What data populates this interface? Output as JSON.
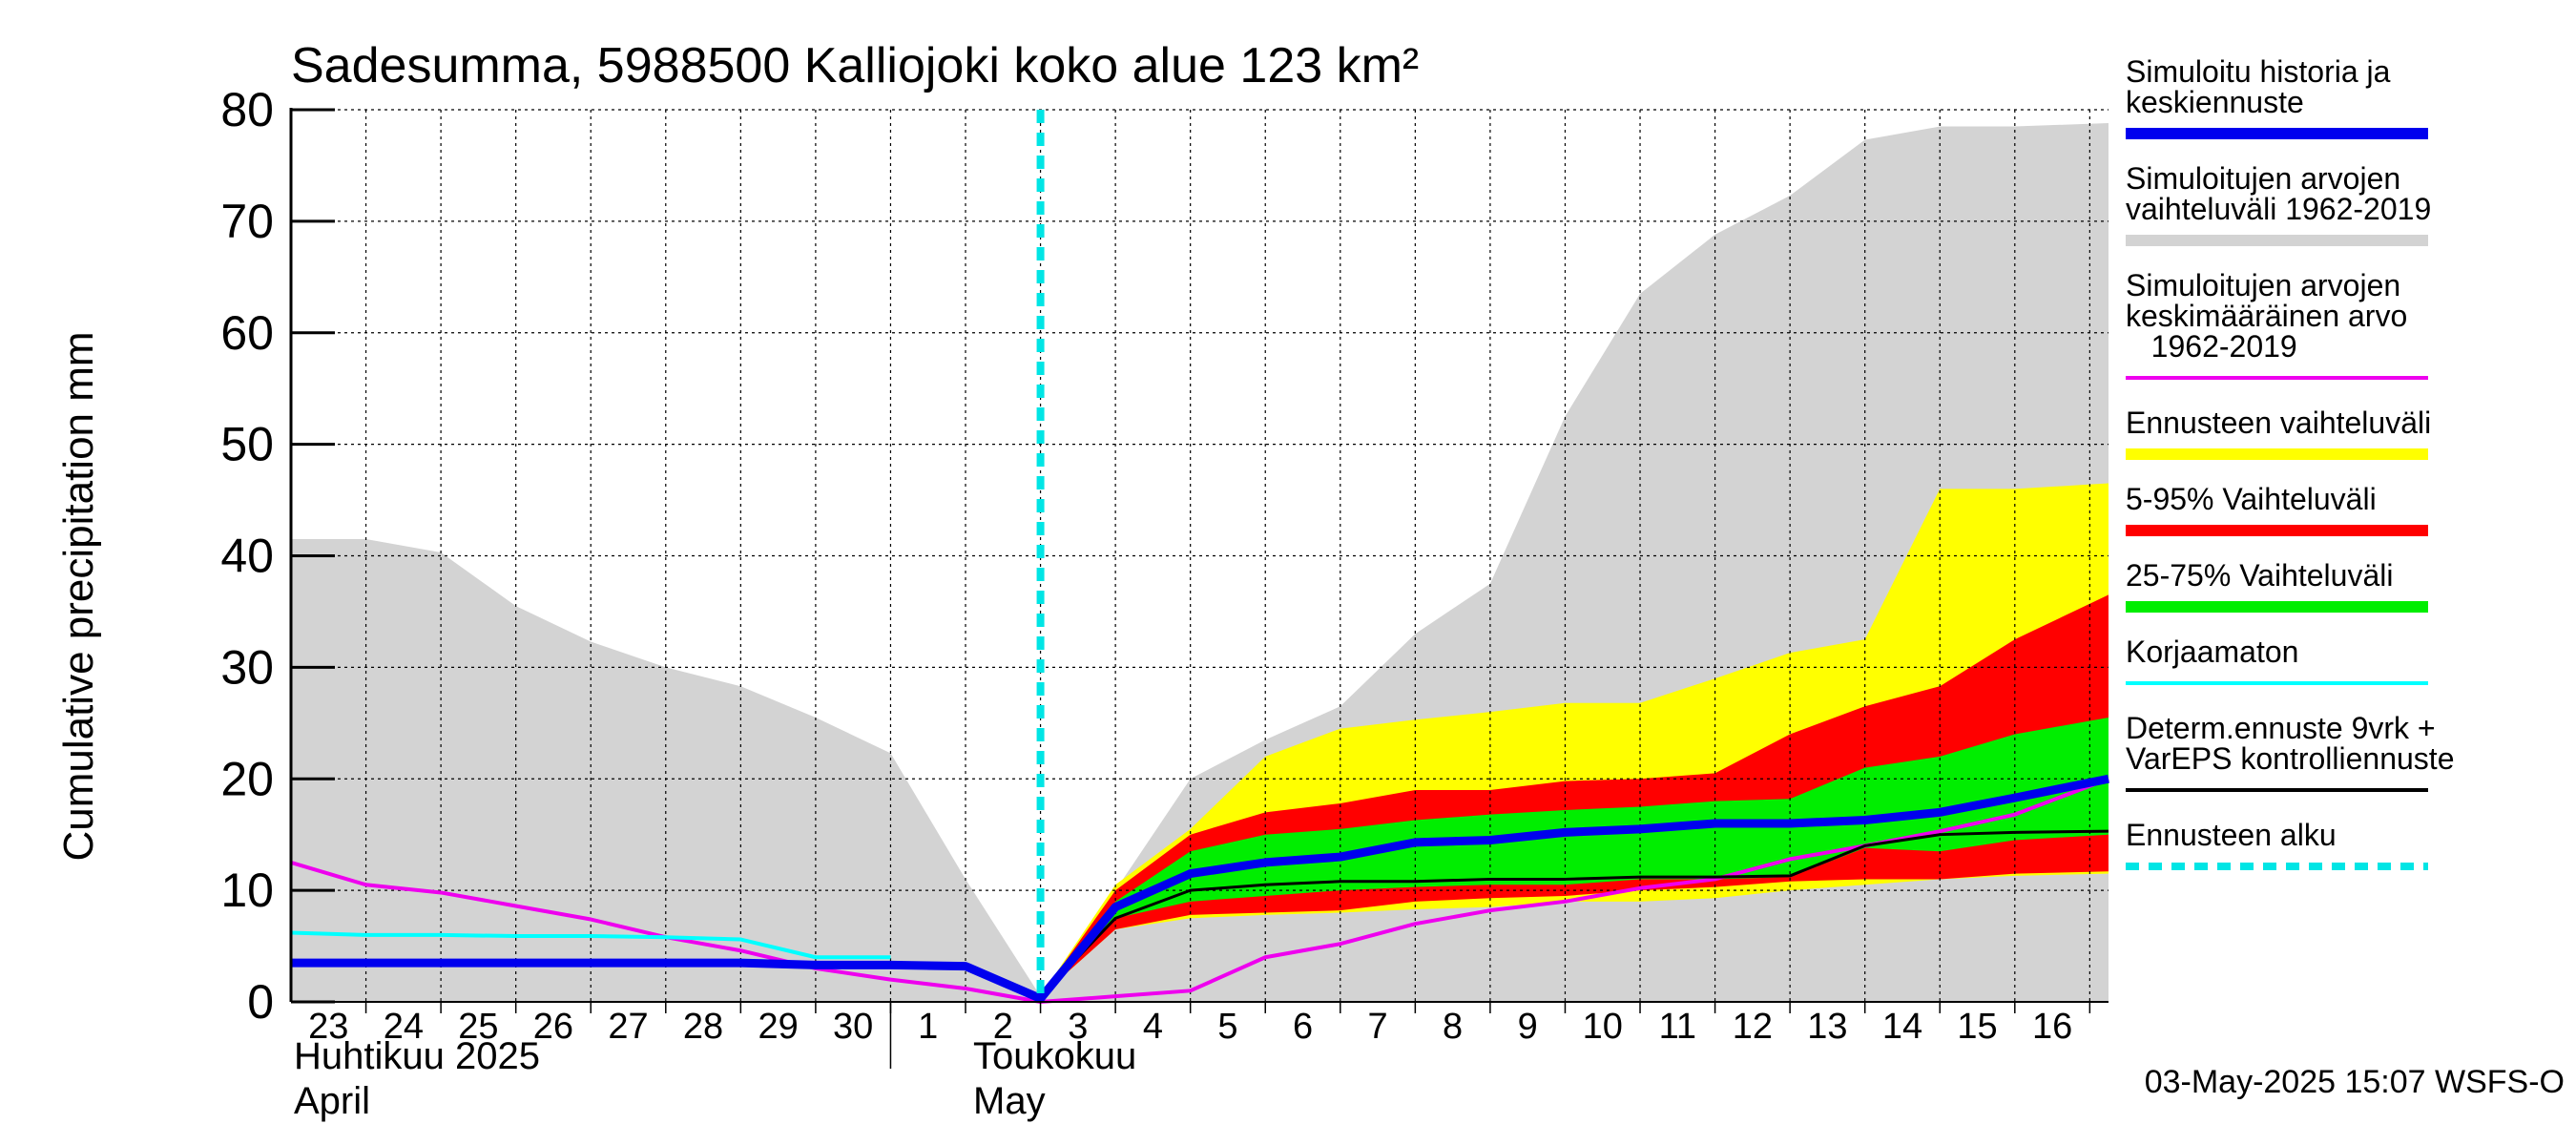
{
  "chart_data": {
    "type": "area",
    "title": "Sadesumma, 5988500 Kalliojoki koko alue 123 km²",
    "ylabel": "Cumulative precipitation   mm",
    "ylim": [
      0,
      80
    ],
    "yticks": [
      0,
      10,
      20,
      30,
      40,
      50,
      60,
      70,
      80
    ],
    "x_day_labels": [
      "23",
      "24",
      "25",
      "26",
      "27",
      "28",
      "29",
      "30",
      "1",
      "2",
      "3",
      "4",
      "5",
      "6",
      "7",
      "8",
      "9",
      "10",
      "11",
      "12",
      "13",
      "14",
      "15",
      "16"
    ],
    "x_day_values": [
      0,
      1,
      2,
      3,
      4,
      5,
      6,
      7,
      8,
      9,
      10,
      11,
      12,
      13,
      14,
      15,
      16,
      17,
      18,
      19,
      20,
      21,
      22,
      23
    ],
    "x_range": [
      -0.5,
      23.75
    ],
    "month_labels": {
      "april_fi": "Huhtikuu  2025",
      "april_en": "April",
      "may_fi": "Toukokuu",
      "may_en": "May"
    },
    "month_boundary_x": 7.5,
    "forecast_start_x": 9.5,
    "timestamp": "03-May-2025 15:07 WSFS-O",
    "series": [
      {
        "name": "hist_range",
        "kind": "band",
        "color": "#d3d3d3",
        "x": [
          -0.5,
          0.5,
          1.5,
          2.5,
          3.5,
          4.5,
          5.5,
          6.5,
          7.5,
          8.5,
          9.5,
          10.5,
          11.5,
          12.5,
          13.5,
          14.5,
          15.5,
          16.5,
          17.5,
          18.5,
          19.5,
          20.5,
          21.5,
          22.5,
          23.75
        ],
        "upper": [
          41.5,
          41.5,
          40.3,
          35.5,
          32.3,
          30.0,
          28.3,
          25.5,
          22.3,
          11.0,
          0.5,
          10.0,
          20.0,
          23.5,
          26.5,
          33.0,
          37.5,
          52.5,
          63.5,
          68.8,
          72.3,
          77.3,
          78.5,
          78.5,
          78.8
        ],
        "lower": [
          0,
          0,
          0,
          0,
          0,
          0,
          0,
          0,
          0,
          0,
          0,
          0,
          0,
          0,
          0,
          0,
          0,
          0,
          0,
          0,
          0,
          0,
          0,
          0,
          0
        ]
      },
      {
        "name": "forecast_range",
        "kind": "band",
        "color": "#ffff00",
        "x": [
          9.5,
          10.5,
          11.5,
          12.5,
          13.5,
          14.5,
          15.5,
          16.5,
          17.5,
          18.5,
          19.5,
          20.5,
          21.5,
          22.5,
          23.75
        ],
        "upper": [
          0.5,
          10.5,
          15.5,
          22.0,
          24.5,
          25.3,
          26.0,
          26.8,
          26.8,
          29.0,
          31.3,
          32.5,
          46.0,
          46.0,
          46.5
        ],
        "lower": [
          0.5,
          6.5,
          7.5,
          7.8,
          8.0,
          8.3,
          8.5,
          9.0,
          9.0,
          9.3,
          10.0,
          10.5,
          11.0,
          11.3,
          11.5
        ]
      },
      {
        "name": "p5_95",
        "kind": "band",
        "color": "#ff0000",
        "x": [
          9.5,
          10.5,
          11.5,
          12.5,
          13.5,
          14.5,
          15.5,
          16.5,
          17.5,
          18.5,
          19.5,
          20.5,
          21.5,
          22.5,
          23.75
        ],
        "upper": [
          0.5,
          10.0,
          15.0,
          17.0,
          17.8,
          19.0,
          19.0,
          19.8,
          20.0,
          20.5,
          24.0,
          26.5,
          28.3,
          32.5,
          36.5
        ],
        "lower": [
          0.5,
          6.5,
          7.8,
          8.0,
          8.2,
          9.0,
          9.3,
          9.5,
          10.0,
          10.3,
          10.8,
          11.0,
          11.0,
          11.5,
          11.7
        ]
      },
      {
        "name": "p25_75",
        "kind": "band",
        "color": "#00ee00",
        "x": [
          9.5,
          10.5,
          11.5,
          12.5,
          13.5,
          14.5,
          15.5,
          16.5,
          17.5,
          18.5,
          19.5,
          20.5,
          21.5,
          22.5,
          23.75
        ],
        "upper": [
          0.5,
          9.0,
          13.5,
          15.0,
          15.5,
          16.3,
          16.8,
          17.2,
          17.5,
          18.0,
          18.2,
          21.0,
          22.0,
          24.0,
          25.5
        ],
        "lower": [
          0.5,
          7.5,
          9.0,
          9.5,
          10.0,
          10.3,
          10.5,
          10.5,
          11.0,
          11.0,
          11.2,
          13.8,
          13.5,
          14.5,
          15.0
        ]
      },
      {
        "name": "mean_1962_2019",
        "kind": "line",
        "color": "#ee00ee",
        "width": 4,
        "x": [
          -0.5,
          0.5,
          1.5,
          2.5,
          3.5,
          4.5,
          5.5,
          6.5,
          7.5,
          8.5,
          9.5,
          10.5,
          11.5,
          12.5,
          13.5,
          14.5,
          15.5,
          16.5,
          17.5,
          18.5,
          19.5,
          20.5,
          21.5,
          22.5,
          23.75
        ],
        "y": [
          12.5,
          10.5,
          9.8,
          8.6,
          7.4,
          5.8,
          4.6,
          3.0,
          2.0,
          1.2,
          0.0,
          0.5,
          1.0,
          4.0,
          5.2,
          7.0,
          8.2,
          9.0,
          10.2,
          11.0,
          12.8,
          14.0,
          15.3,
          16.8,
          20.0
        ]
      },
      {
        "name": "uncorrected",
        "kind": "line",
        "color": "#00ffff",
        "width": 4,
        "x": [
          -0.5,
          0.5,
          1.5,
          2.5,
          3.5,
          4.5,
          5.5,
          6.5,
          7.5
        ],
        "y": [
          6.2,
          6.0,
          6.0,
          5.9,
          5.9,
          5.8,
          5.6,
          4.0,
          4.0
        ]
      },
      {
        "name": "determ_control",
        "kind": "line",
        "color": "#000000",
        "width": 3,
        "x": [
          9.5,
          10.5,
          11.5,
          12.5,
          13.5,
          14.5,
          15.5,
          16.5,
          17.5,
          18.5,
          19.5,
          20.5,
          21.5,
          22.5,
          23.75
        ],
        "y": [
          0.5,
          7.5,
          10.0,
          10.5,
          10.8,
          10.8,
          11.0,
          11.0,
          11.2,
          11.2,
          11.3,
          14.0,
          15.0,
          15.2,
          15.3
        ]
      },
      {
        "name": "simulated_history",
        "kind": "line",
        "color": "#0000ee",
        "width": 9,
        "x": [
          -0.5,
          0.5,
          1.5,
          2.5,
          3.5,
          4.5,
          5.5,
          6.5,
          7.5,
          8.5,
          9.5,
          10.5,
          11.5,
          12.5,
          13.5,
          14.5,
          15.5,
          16.5,
          17.5,
          18.5,
          19.5,
          20.5,
          21.5,
          22.5,
          23.75
        ],
        "y": [
          3.5,
          3.5,
          3.5,
          3.5,
          3.5,
          3.5,
          3.5,
          3.3,
          3.3,
          3.2,
          0.3,
          8.5,
          11.5,
          12.5,
          13.0,
          14.3,
          14.5,
          15.2,
          15.5,
          16.0,
          16.0,
          16.3,
          17.0,
          18.3,
          20.0
        ]
      }
    ],
    "legend": [
      {
        "label_lines": [
          "Simuloitu historia ja",
          "keskiennuste"
        ],
        "color": "#0000ee",
        "style": "thick"
      },
      {
        "label_lines": [
          "Simuloitujen arvojen",
          "vaihteluväli 1962-2019"
        ],
        "color": "#d3d3d3",
        "style": "thick"
      },
      {
        "label_lines": [
          "Simuloitujen arvojen",
          "keskimääräinen arvo",
          "   1962-2019"
        ],
        "color": "#ee00ee",
        "style": "thin"
      },
      {
        "label_lines": [
          "Ennusteen vaihteluväli"
        ],
        "color": "#ffff00",
        "style": "thick"
      },
      {
        "label_lines": [
          "5-95% Vaihteluväli"
        ],
        "color": "#ff0000",
        "style": "thick"
      },
      {
        "label_lines": [
          "25-75% Vaihteluväli"
        ],
        "color": "#00ee00",
        "style": "thick"
      },
      {
        "label_lines": [
          "Korjaamaton"
        ],
        "color": "#00ffff",
        "style": "thin"
      },
      {
        "label_lines": [
          "Determ.ennuste 9vrk +",
          "VarEPS kontrolliennuste"
        ],
        "color": "#000000",
        "style": "thin"
      },
      {
        "label_lines": [
          "Ennusteen alku"
        ],
        "color": "#00e5e5",
        "style": "dashed"
      }
    ]
  }
}
